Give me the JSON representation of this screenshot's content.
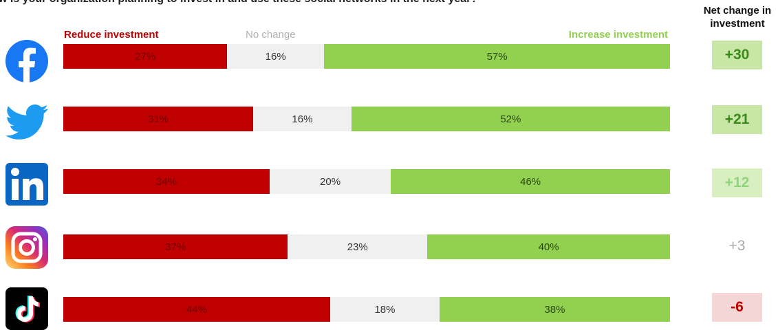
{
  "page": {
    "title": "w is your organization planning to invest in and use these social networks in the next year?"
  },
  "header": {
    "net_line1": "Net change in",
    "net_line2": "investment"
  },
  "legend": {
    "reduce": "Reduce investment",
    "nochange": "No change",
    "increase": "Increase investment"
  },
  "colors": {
    "reduce": "#c00000",
    "reduce_text": "#6e0000",
    "nochange": "#f0f0f0",
    "nochange_text": "#333333",
    "increase": "#92d050",
    "increase_text": "#2b4a12",
    "legend_reduce": "#c00000",
    "legend_nochange": "#b0b0b0",
    "legend_increase": "#92d050"
  },
  "icons": [
    "facebook-icon",
    "twitter-icon",
    "linkedin-icon",
    "instagram-icon",
    "tiktok-icon"
  ],
  "chart_data": {
    "type": "bar",
    "stacked": true,
    "orientation": "horizontal",
    "categories": [
      "Facebook",
      "Twitter",
      "LinkedIn",
      "Instagram",
      "TikTok"
    ],
    "series": [
      {
        "name": "Reduce investment",
        "values": [
          27,
          31,
          34,
          37,
          44
        ],
        "labels": [
          "27%",
          "31%",
          "34%",
          "37%",
          "44%"
        ]
      },
      {
        "name": "No change",
        "values": [
          16,
          16,
          20,
          23,
          18
        ],
        "labels": [
          "16%",
          "16%",
          "20%",
          "23%",
          "18%"
        ]
      },
      {
        "name": "Increase investment",
        "values": [
          57,
          52,
          46,
          40,
          38
        ],
        "labels": [
          "57%",
          "52%",
          "46%",
          "40%",
          "38%"
        ]
      }
    ],
    "net_change": {
      "values": [
        30,
        21,
        12,
        3,
        -6
      ],
      "labels": [
        "+30",
        "+21",
        "+12",
        "+3",
        "-6"
      ],
      "box_colors": [
        "#c8e6a6",
        "#c8e6a6",
        "#d8efc0",
        "#ffffff",
        "#f4d6d6"
      ],
      "text_colors": [
        "#3a8a1a",
        "#3a8a1a",
        "#8fd47a",
        "#aaaaaa",
        "#c00000"
      ]
    }
  }
}
